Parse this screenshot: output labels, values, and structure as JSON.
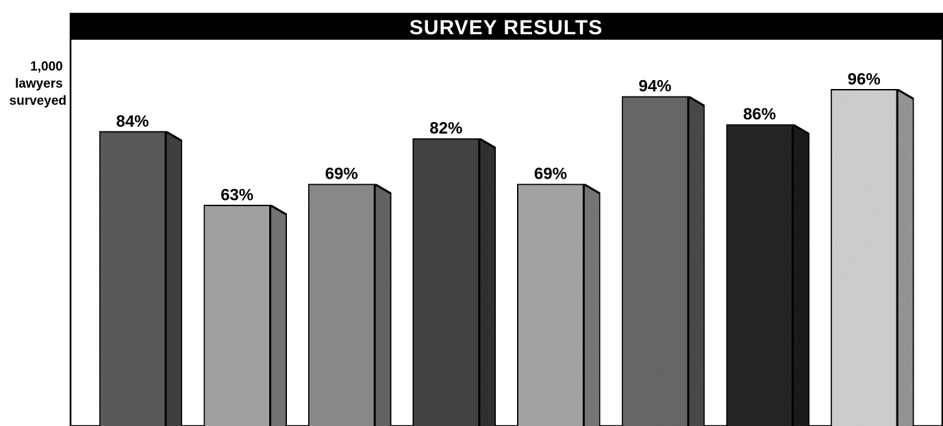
{
  "chart_data": {
    "type": "bar",
    "title": "SURVEY RESULTS",
    "ylabel_lines": [
      "1,000",
      "lawyers",
      "surveyed"
    ],
    "categories": [
      "",
      "",
      "",
      "",
      "",
      "",
      "",
      ""
    ],
    "values": [
      84,
      63,
      69,
      82,
      69,
      94,
      86,
      96
    ],
    "value_labels": [
      "84%",
      "63%",
      "69%",
      "82%",
      "69%",
      "94%",
      "86%",
      "96%"
    ],
    "unit": "%",
    "ylim": [
      0,
      100
    ],
    "grid": false,
    "legend": "none",
    "bar_colors": [
      "#5c5c5c",
      "#a6a6a6",
      "#8e8e8e",
      "#454545",
      "#a9a9a9",
      "#6a6a6a",
      "#262626",
      "#d4d4d4"
    ]
  }
}
